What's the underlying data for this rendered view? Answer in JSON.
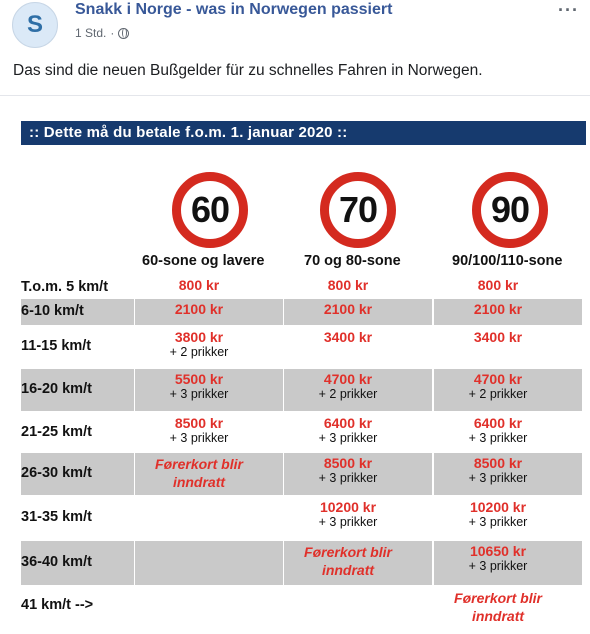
{
  "post": {
    "avatar_letter": "S",
    "page_name": "Snakk i Norge - was in Norwegen passiert",
    "time": "1 Std.",
    "separator": "·",
    "more_label": "···",
    "privacy_icon": "globe-icon",
    "text": "Das sind die neuen Bußgelder für zu schnelles Fahren in Norwegen."
  },
  "image": {
    "banner": ":: Dette må du betale f.o.m. 1. januar 2020 ::",
    "signs": [
      "60",
      "70",
      "90"
    ],
    "zones": [
      "60-sone og lavere",
      "70 og 80-sone",
      "90/100/110-sone"
    ],
    "rows": [
      {
        "label": "T.o.m. 5 km/t",
        "shaded": false,
        "cells": [
          {
            "amount": "800 kr"
          },
          {
            "amount": "800 kr"
          },
          {
            "amount": "800 kr"
          }
        ]
      },
      {
        "label": "6-10 km/t",
        "shaded": true,
        "cells": [
          {
            "amount": "2100 kr"
          },
          {
            "amount": "2100 kr"
          },
          {
            "amount": "2100 kr"
          }
        ]
      },
      {
        "label": "11-15 km/t",
        "shaded": false,
        "cells": [
          {
            "amount": "3800 kr",
            "points": "+ 2 prikker"
          },
          {
            "amount": "3400 kr"
          },
          {
            "amount": "3400 kr"
          }
        ]
      },
      {
        "label": "16-20 km/t",
        "shaded": true,
        "cells": [
          {
            "amount": "5500 kr",
            "points": "+ 3 prikker"
          },
          {
            "amount": "4700 kr",
            "points": "+ 2 prikker"
          },
          {
            "amount": "4700 kr",
            "points": "+ 2 prikker"
          }
        ]
      },
      {
        "label": "21-25 km/t",
        "shaded": false,
        "cells": [
          {
            "amount": "8500 kr",
            "points": "+ 3 prikker"
          },
          {
            "amount": "6400 kr",
            "points": "+ 3 prikker"
          },
          {
            "amount": "6400 kr",
            "points": "+ 3 prikker"
          }
        ]
      },
      {
        "label": "26-30 km/t",
        "shaded": true,
        "cells": [
          {
            "license": [
              "Førerkort blir",
              "inndratt"
            ]
          },
          {
            "amount": "8500 kr",
            "points": "+ 3 prikker"
          },
          {
            "amount": "8500 kr",
            "points": "+ 3 prikker"
          }
        ]
      },
      {
        "label": "31-35 km/t",
        "shaded": false,
        "cells": [
          {},
          {
            "amount": "10200 kr",
            "points": "+ 3 prikker"
          },
          {
            "amount": "10200 kr",
            "points": "+ 3 prikker"
          }
        ]
      },
      {
        "label": "36-40 km/t",
        "shaded": true,
        "cells": [
          {},
          {
            "license": [
              "Førerkort blir",
              "inndratt"
            ]
          },
          {
            "amount": "10650 kr",
            "points": "+ 3 prikker"
          }
        ]
      },
      {
        "label": "41 km/t -->",
        "shaded": false,
        "cells": [
          {},
          {},
          {
            "license": [
              "Førerkort blir",
              "inndratt"
            ]
          }
        ]
      }
    ]
  },
  "colors": {
    "link": "#385898",
    "banner": "#163a6e",
    "sign_red": "#d42a1f",
    "fine_red": "#e0302a",
    "row_shade": "#c9c9c9"
  }
}
